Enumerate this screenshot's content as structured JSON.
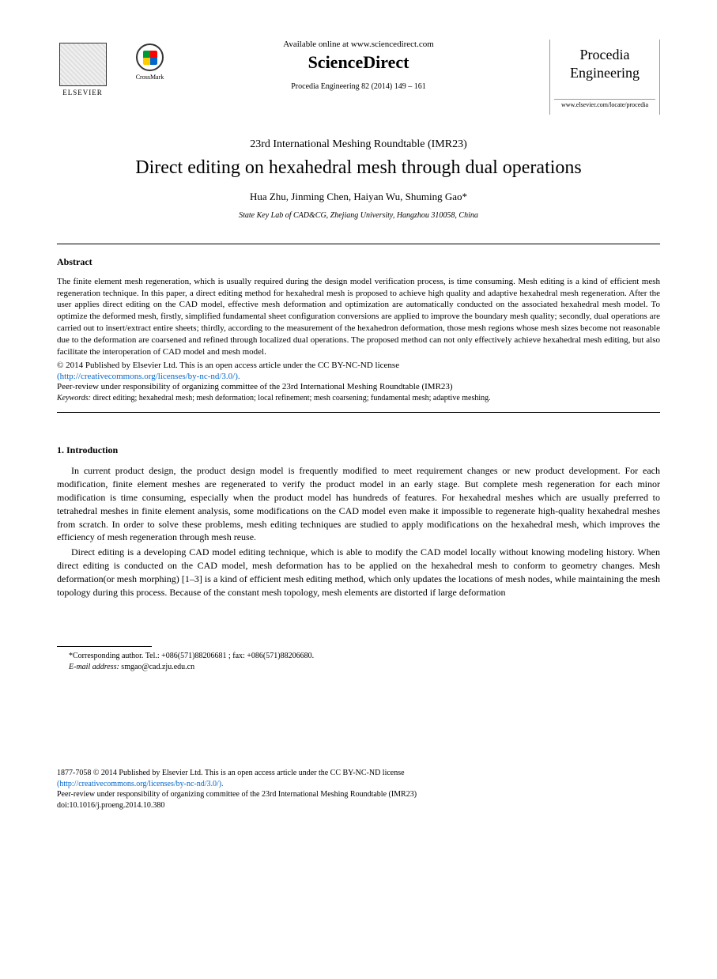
{
  "header": {
    "available_text": "Available online at www.sciencedirect.com",
    "sciencedirect": "ScienceDirect",
    "citation": "Procedia Engineering 82 (2014) 149 – 161",
    "elsevier_label": "ELSEVIER",
    "crossmark_label": "CrossMark",
    "procedia_line1": "Procedia",
    "procedia_line2": "Engineering",
    "procedia_url": "www.elsevier.com/locate/procedia"
  },
  "conference": "23rd International Meshing Roundtable (IMR23)",
  "title": "Direct editing on hexahedral mesh through dual operations",
  "authors": "Hua Zhu, Jinming Chen, Haiyan Wu, Shuming Gao*",
  "affiliation": "State Key Lab of CAD&CG, Zhejiang University, Hangzhou 310058, China",
  "abstract": {
    "heading": "Abstract",
    "text": "The finite element mesh regeneration, which is usually required during the design model verification process, is time consuming. Mesh editing is a kind of efficient mesh regeneration technique. In this paper, a direct editing method for hexahedral mesh is proposed to achieve high quality and adaptive hexahedral mesh regeneration. After the user applies direct editing on the CAD model, effective mesh deformation and optimization are automatically conducted on the associated hexahedral mesh model. To optimize the deformed mesh, firstly, simplified fundamental sheet configuration conversions are applied to improve the boundary mesh quality; secondly, dual operations are carried out to insert/extract entire sheets; thirdly, according to the measurement of the hexahedron deformation, those mesh regions whose mesh sizes become not reasonable due to the deformation are coarsened and refined through localized dual operations. The proposed method can not only effectively achieve hexahedral mesh editing, but also facilitate the interoperation of CAD model and mesh model.",
    "copyright": "© 2014 Published by Elsevier Ltd. This is an open access article under the CC BY-NC-ND license",
    "license_link": "(http://creativecommons.org/licenses/by-nc-nd/3.0/).",
    "peer_review": "Peer-review under responsibility of organizing committee of the 23rd International Meshing Roundtable (IMR23)",
    "keywords_label": "Keywords:",
    "keywords_text": "   direct editing; hexahedral mesh; mesh deformation; local refinement; mesh coarsening; fundamental mesh; adaptive meshing."
  },
  "introduction": {
    "heading": "1. Introduction",
    "para1": "In current product design, the product design model is frequently modified to meet requirement changes or new product development. For each modification, finite element meshes are regenerated to verify the product model in an early stage. But complete mesh regeneration for each minor modification is time consuming, especially when the product model has hundreds of features. For hexahedral meshes which are usually preferred to tetrahedral meshes in finite element analysis, some modifications on the CAD model even make it impossible to regenerate high-quality hexahedral meshes from scratch. In order to solve these problems, mesh editing techniques are studied to apply modifications on the hexahedral mesh, which improves the efficiency of mesh regeneration through mesh reuse.",
    "para2": "Direct editing is a developing CAD model editing technique, which is able to modify the CAD model locally without knowing modeling history. When direct editing is conducted on the CAD model, mesh deformation has to be applied on the hexahedral mesh to conform to geometry changes. Mesh deformation(or mesh morphing) [1–3] is a kind of efficient mesh editing method, which only updates the locations of mesh nodes, while maintaining the mesh topology during this process. Because of the constant mesh topology, mesh elements are distorted if large deformation"
  },
  "footnote": {
    "corresponding": "*Corresponding author. Tel.: +086(571)88206681 ; fax: +086(571)88206680.",
    "email_label": "E-mail address:",
    "email": " smgao@cad.zju.edu.cn"
  },
  "footer": {
    "line1": "1877-7058 © 2014 Published by Elsevier Ltd. This is an open access article under the CC BY-NC-ND license",
    "link": "(http://creativecommons.org/licenses/by-nc-nd/3.0/).",
    "line2": "Peer-review under responsibility of organizing committee of the 23rd International Meshing Roundtable (IMR23)",
    "doi": "doi:10.1016/j.proeng.2014.10.380"
  }
}
